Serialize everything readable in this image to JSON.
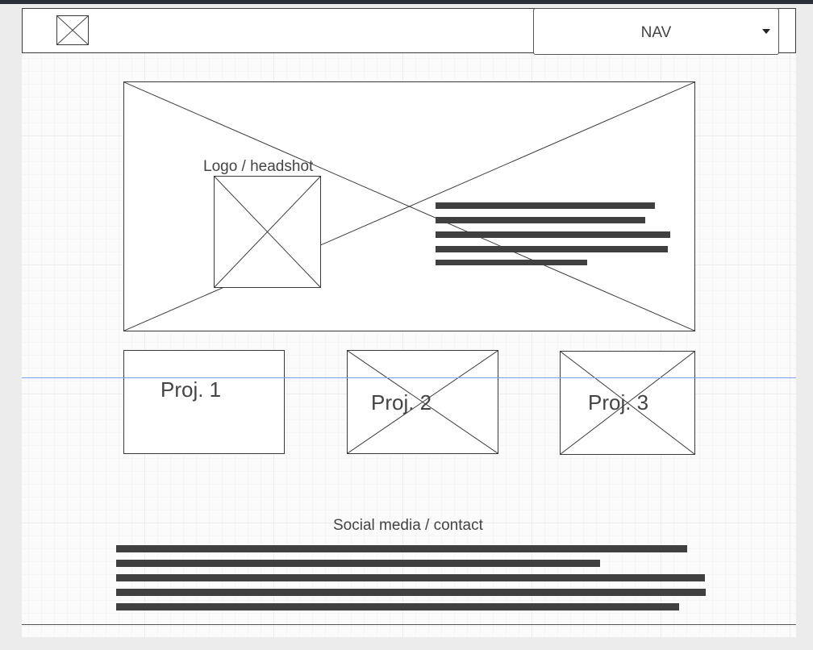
{
  "header": {
    "logo_icon": "image-placeholder-icon",
    "nav": {
      "label": "NAV",
      "icon": "caret-down-icon"
    }
  },
  "hero": {
    "logo_label": "Logo / headshot",
    "image_icon": "image-placeholder-icon"
  },
  "projects": [
    {
      "label": "Proj. 1"
    },
    {
      "label": "Proj. 2"
    },
    {
      "label": "Proj. 3"
    }
  ],
  "footer": {
    "heading": "Social media / contact"
  },
  "colors": {
    "guide": "#7a9ef5",
    "text_bar": "#404040",
    "outline": "#3a3a3a"
  }
}
